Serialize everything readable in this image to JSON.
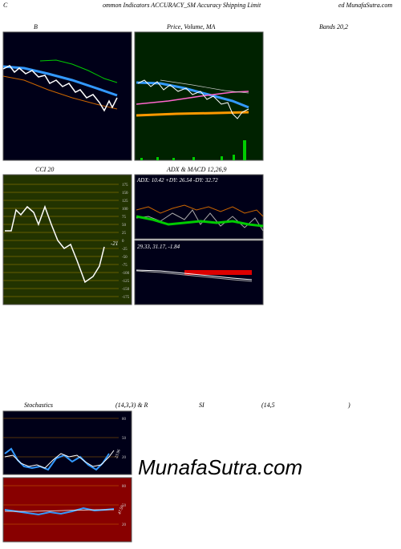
{
  "header": {
    "left": "C",
    "title": "ommon Indicators ACCURACY_SM Accuracy Shipping Limit",
    "right": "ed MunafaSutra.com"
  },
  "panels": {
    "bands_left": "B",
    "price": "Price, Volume, MA",
    "bands_right": "Bands 20,2",
    "cci": {
      "title": "CCI 20",
      "ticks": [
        "175",
        "150",
        "125",
        "100",
        "75",
        "50",
        "25",
        "0",
        "-25",
        "-50",
        "-75",
        "-100",
        "-125",
        "-150",
        "-175"
      ],
      "value": "-21"
    },
    "adx": {
      "title": "ADX  & MACD 12,26,9",
      "readout": "ADX: 10.42  +DY: 26.54  -DY: 32.72",
      "macd": "29.33,  31.17,  -1.84"
    },
    "stoch": {
      "title": "Stochastics",
      "params": "(14,3,3) & R",
      "rsi": "SI",
      "rsi_params": "(14,5",
      "close": ")",
      "ticks": [
        "80",
        "50",
        "20"
      ],
      "value": "23.96"
    },
    "rsi": {
      "ticks": [
        "80",
        "50",
        "20"
      ],
      "value": "47.50"
    }
  },
  "watermark": "MunafaSutra.com"
}
